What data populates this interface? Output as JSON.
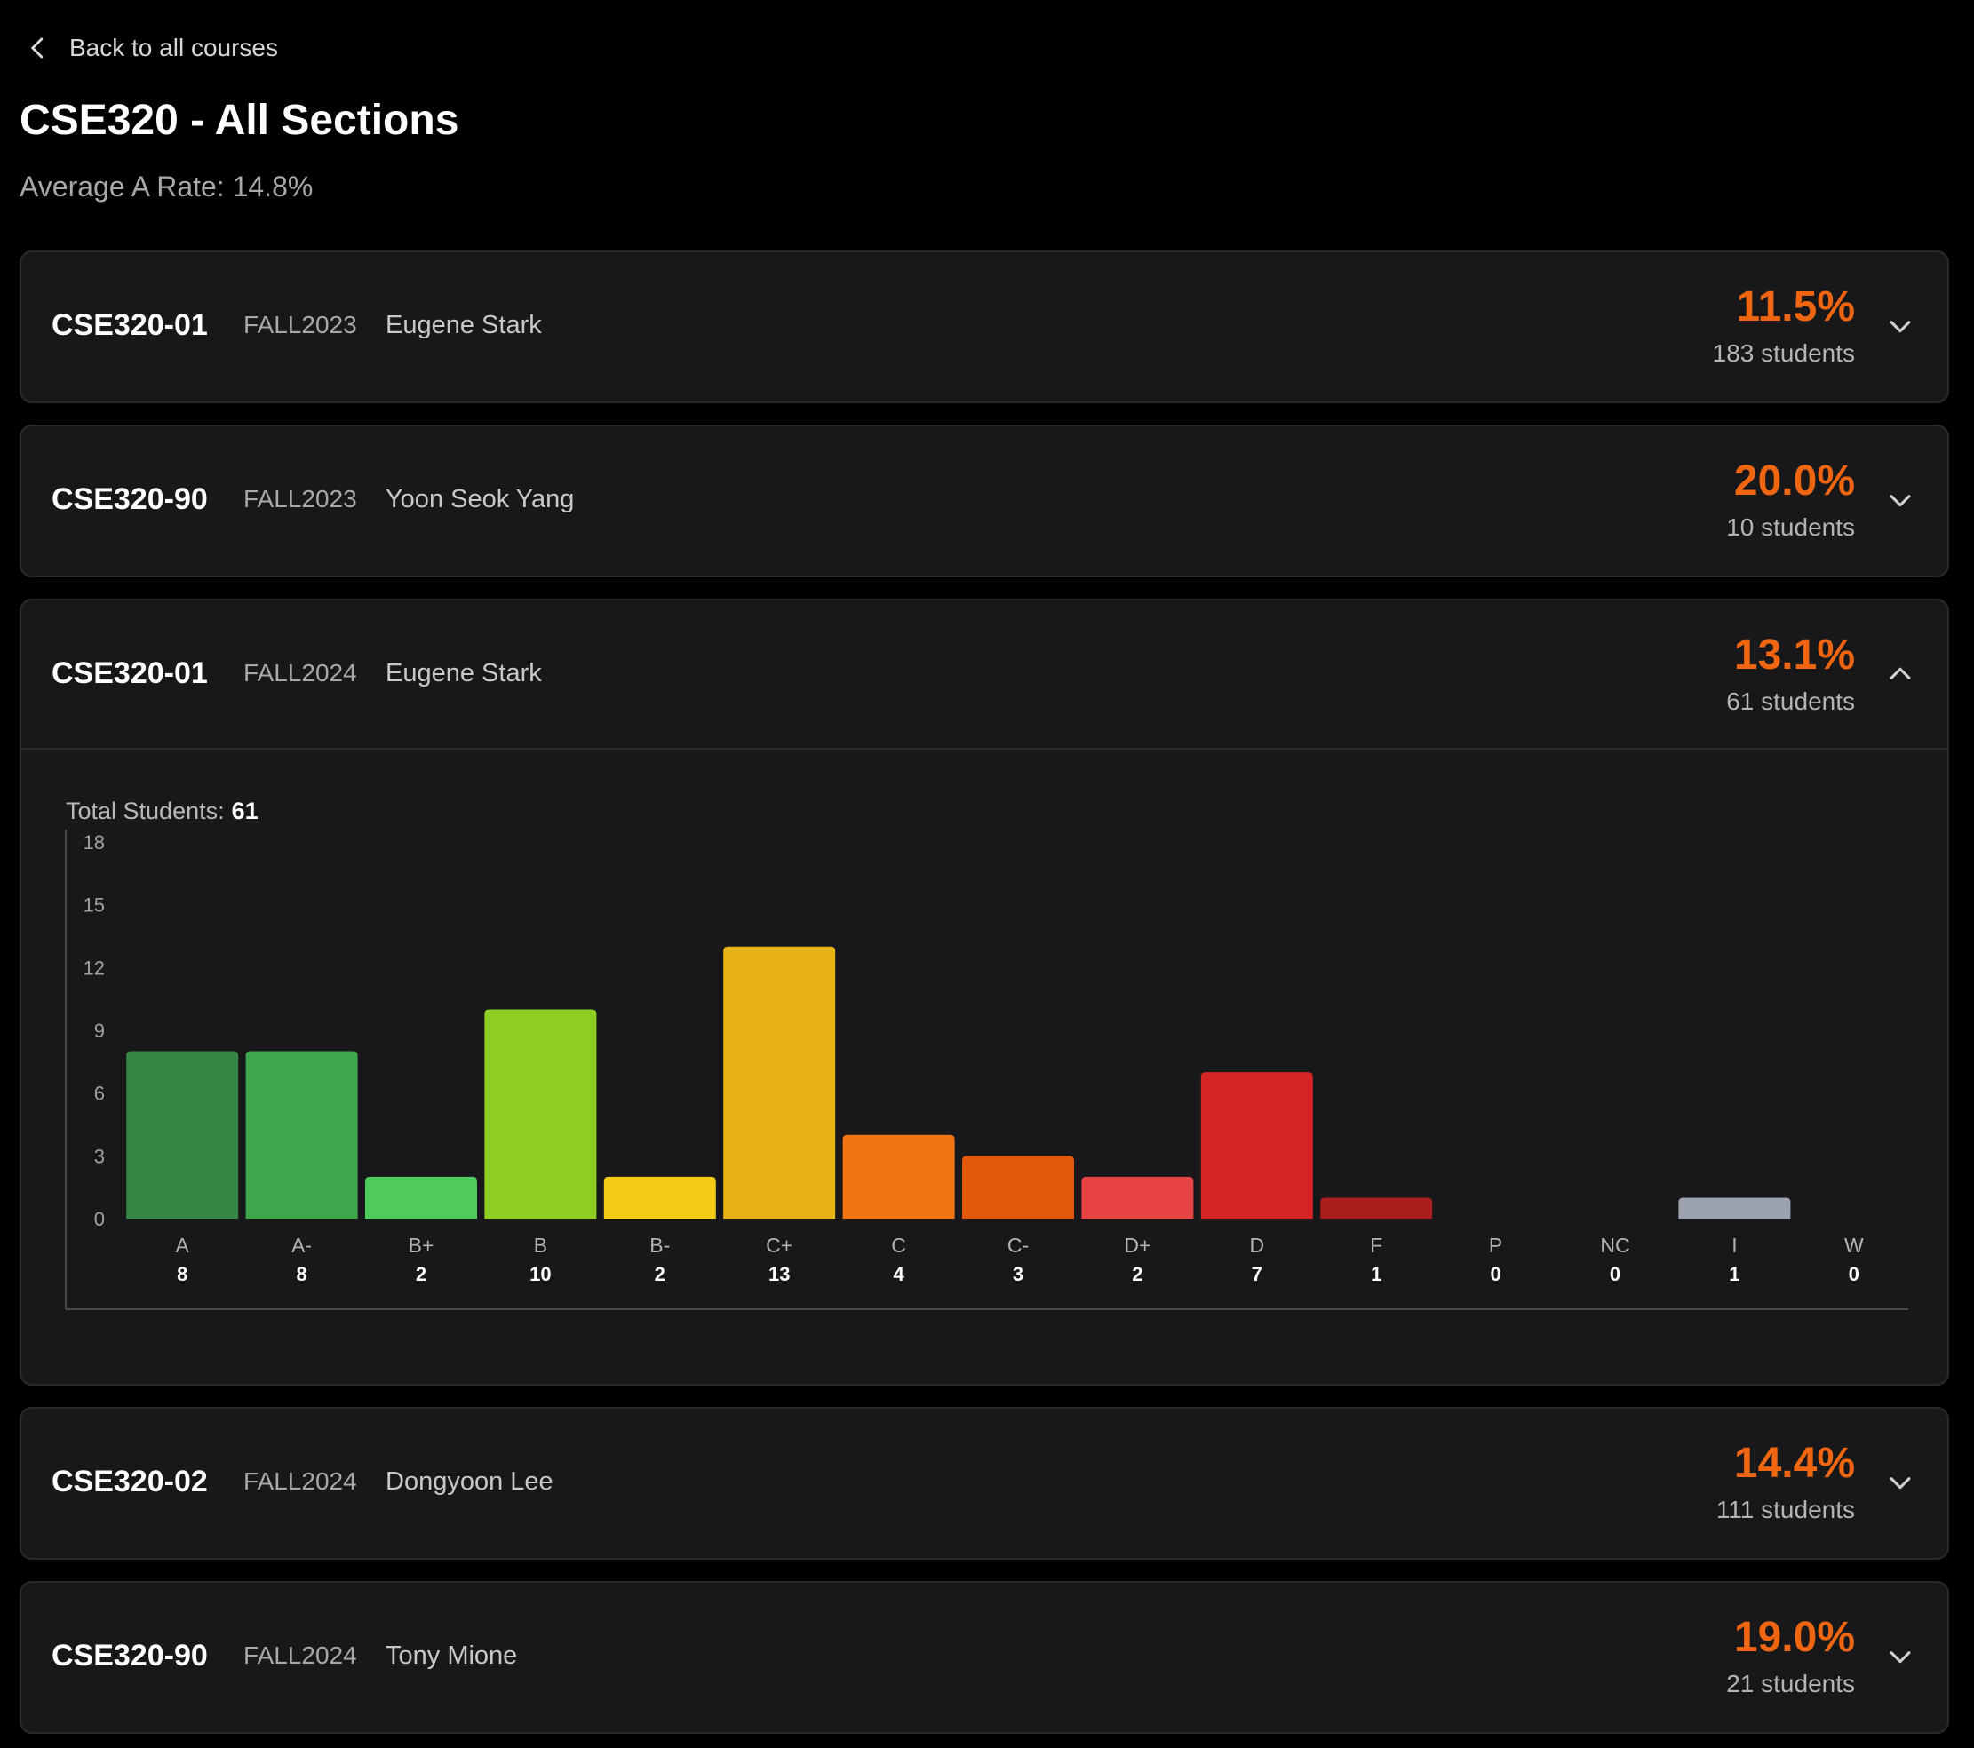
{
  "nav": {
    "back_label": "Back to all courses"
  },
  "course": {
    "title": "CSE320 - All Sections",
    "avg_rate_label": "Average A Rate:",
    "avg_rate_value": "14.8%"
  },
  "sections": [
    {
      "code": "CSE320-01",
      "term": "FALL2023",
      "professor": "Eugene Stark",
      "a_rate": "11.5%",
      "students": "183 students",
      "expanded": false
    },
    {
      "code": "CSE320-90",
      "term": "FALL2023",
      "professor": "Yoon Seok Yang",
      "a_rate": "20.0%",
      "students": "10 students",
      "expanded": false
    },
    {
      "code": "CSE320-01",
      "term": "FALL2024",
      "professor": "Eugene Stark",
      "a_rate": "13.1%",
      "students": "61 students",
      "expanded": true
    },
    {
      "code": "CSE320-02",
      "term": "FALL2024",
      "professor": "Dongyoon Lee",
      "a_rate": "14.4%",
      "students": "111 students",
      "expanded": false
    },
    {
      "code": "CSE320-90",
      "term": "FALL2024",
      "professor": "Tony Mione",
      "a_rate": "19.0%",
      "students": "21 students",
      "expanded": false
    }
  ],
  "expanded_detail": {
    "total_label": "Total Students:",
    "total_value": "61"
  },
  "icons": {
    "back": "chevron-left-icon",
    "collapsed": "chevron-down-icon",
    "expanded": "chevron-up-icon"
  },
  "colors": {
    "accent": "#f0650f",
    "card_bg": "#18181b",
    "page_bg": "#000000"
  },
  "chart_data": {
    "type": "bar",
    "categories": [
      "A",
      "A-",
      "B+",
      "B",
      "B-",
      "C+",
      "C",
      "C-",
      "D+",
      "D",
      "F",
      "P",
      "NC",
      "I",
      "W"
    ],
    "values": [
      8,
      8,
      2,
      10,
      2,
      13,
      4,
      3,
      2,
      7,
      1,
      0,
      0,
      1,
      0
    ],
    "bar_colors": [
      "#358543",
      "#3ea74b",
      "#4fcb5e",
      "#8fcf22",
      "#f4cb14",
      "#e6b215",
      "#f27413",
      "#e25708",
      "#e84343",
      "#d42424",
      "#a91d1d",
      "#6b7280",
      "#6b7280",
      "#9ca3af",
      "#6b7280"
    ],
    "yticks": [
      0,
      3,
      6,
      9,
      12,
      15,
      18
    ],
    "ylim": [
      0,
      18
    ],
    "grid": false,
    "legend": "none"
  }
}
